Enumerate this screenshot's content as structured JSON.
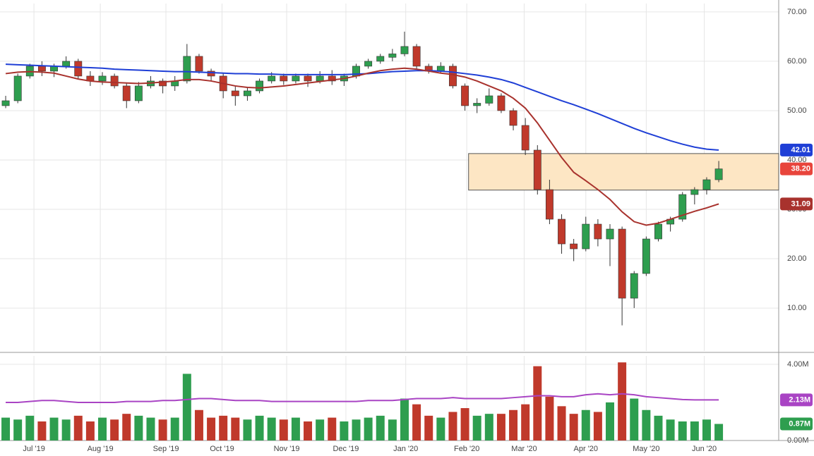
{
  "chart_data": [
    {
      "type": "candlestick",
      "candles": [
        [
          51,
          53,
          50.5,
          52
        ],
        [
          52,
          57.5,
          51.5,
          57
        ],
        [
          57,
          59.5,
          56.5,
          59
        ],
        [
          59,
          60,
          57,
          58
        ],
        [
          58,
          59.5,
          56.8,
          59
        ],
        [
          59,
          61,
          58.5,
          60
        ],
        [
          60,
          60.5,
          56.5,
          57
        ],
        [
          57,
          58,
          55,
          56
        ],
        [
          56,
          57.8,
          55.2,
          57
        ],
        [
          57,
          57.5,
          54.5,
          55
        ],
        [
          55,
          55.5,
          50.5,
          52
        ],
        [
          52,
          55.8,
          51.5,
          55
        ],
        [
          55,
          57,
          54.5,
          56
        ],
        [
          56,
          56.5,
          53.5,
          55
        ],
        [
          55,
          57,
          54,
          56
        ],
        [
          56,
          63.5,
          55.5,
          61
        ],
        [
          61,
          61.5,
          57.5,
          58
        ],
        [
          58,
          58.5,
          56,
          57
        ],
        [
          57,
          57.5,
          52.5,
          54
        ],
        [
          54,
          55,
          51,
          53
        ],
        [
          53,
          54.8,
          52,
          54
        ],
        [
          54,
          56.5,
          53.5,
          56
        ],
        [
          56,
          57.8,
          55.5,
          57
        ],
        [
          57,
          57.5,
          55.2,
          56
        ],
        [
          56,
          57.5,
          55.5,
          57
        ],
        [
          57,
          57.5,
          54.8,
          56
        ],
        [
          56,
          58,
          55.5,
          57
        ],
        [
          57,
          58.2,
          55.2,
          56
        ],
        [
          56,
          57.5,
          55,
          57
        ],
        [
          57,
          59.5,
          56.5,
          59
        ],
        [
          59,
          60.5,
          58.5,
          60
        ],
        [
          60,
          61.5,
          59.5,
          61
        ],
        [
          60.8,
          62.5,
          60,
          61.5
        ],
        [
          61.5,
          66,
          61,
          63
        ],
        [
          63,
          63.5,
          58.5,
          59
        ],
        [
          59,
          59.5,
          57.5,
          58
        ],
        [
          58,
          59.8,
          57.5,
          59
        ],
        [
          59,
          59.5,
          54.5,
          55
        ],
        [
          55,
          55.5,
          50,
          51
        ],
        [
          51,
          52.5,
          49.5,
          51.5
        ],
        [
          51.5,
          54.5,
          51,
          53
        ],
        [
          53,
          53.5,
          49.5,
          50
        ],
        [
          50,
          50.5,
          46,
          47
        ],
        [
          47,
          48.5,
          41,
          42
        ],
        [
          42,
          43,
          33,
          34
        ],
        [
          34,
          36,
          27,
          28
        ],
        [
          28,
          29,
          21,
          23
        ],
        [
          23,
          24,
          19.5,
          22
        ],
        [
          22,
          28.5,
          21.5,
          27
        ],
        [
          27,
          28,
          22.5,
          24
        ],
        [
          24,
          27,
          18.5,
          26
        ],
        [
          26,
          26.5,
          6.5,
          12
        ],
        [
          12,
          17.5,
          10,
          17
        ],
        [
          17,
          24.5,
          16.5,
          24
        ],
        [
          24,
          27.5,
          23.5,
          27
        ],
        [
          27,
          28.5,
          25.5,
          28
        ],
        [
          28,
          33.5,
          27.5,
          33
        ],
        [
          33,
          34.5,
          31,
          34
        ],
        [
          34,
          36.5,
          33,
          36
        ],
        [
          36,
          39.8,
          35.5,
          38.2
        ]
      ],
      "up_color": "#2e9e4f",
      "down_color": "#c0392b",
      "series": [
        {
          "color": "#1f3fd6",
          "values": [
            59.4,
            59.3,
            59.2,
            59.1,
            59.0,
            58.9,
            58.8,
            58.7,
            58.6,
            58.4,
            58.3,
            58.2,
            58.1,
            58.0,
            57.9,
            57.9,
            57.8,
            57.7,
            57.6,
            57.5,
            57.5,
            57.4,
            57.4,
            57.3,
            57.3,
            57.3,
            57.3,
            57.3,
            57.3,
            57.4,
            57.5,
            57.7,
            57.9,
            58.0,
            58.1,
            58.1,
            58.0,
            57.8,
            57.5,
            57.2,
            56.8,
            56.3,
            55.6,
            54.7,
            53.8,
            52.9,
            52.0,
            51.2,
            50.3,
            49.4,
            48.4,
            47.4,
            46.4,
            45.5,
            44.7,
            43.9,
            43.2,
            42.6,
            42.2,
            42.01
          ]
        },
        {
          "color": "#a8322d",
          "values": [
            57.5,
            57.8,
            57.9,
            57.8,
            57.6,
            57.0,
            56.4,
            56.0,
            55.8,
            55.7,
            55.6,
            55.5,
            55.6,
            55.8,
            56.0,
            56.3,
            56.3,
            56.0,
            55.5,
            55.0,
            54.7,
            54.6,
            54.8,
            55.0,
            55.3,
            55.6,
            55.9,
            56.2,
            56.5,
            57.0,
            57.6,
            58.1,
            58.4,
            58.6,
            58.4,
            58.0,
            57.6,
            57.3,
            56.8,
            56.0,
            55.0,
            54.0,
            52.5,
            50.5,
            47.5,
            44.0,
            40.5,
            37.5,
            35.8,
            34.0,
            32.0,
            29.5,
            27.5,
            26.8,
            27.2,
            28.0,
            28.8,
            29.6,
            30.3,
            31.09
          ]
        }
      ],
      "price_label": {
        "value": 38.2,
        "label": "38.20"
      },
      "zone": {
        "from": 38.3,
        "low": 33.9,
        "high": 41.3,
        "color": "#fde6c4"
      },
      "xlim": [
        -0.47,
        63.96
      ],
      "xticks": [
        {
          "value": 2.34,
          "label": "Jul '19"
        },
        {
          "value": 7.83,
          "label": "Aug '19"
        },
        {
          "value": 13.26,
          "label": "Sep '19"
        },
        {
          "value": 17.9,
          "label": "Oct '19"
        },
        {
          "value": 23.25,
          "label": "Nov '19"
        },
        {
          "value": 28.15,
          "label": "Dec '19"
        },
        {
          "value": 33.1,
          "label": "Jan '20"
        },
        {
          "value": 38.15,
          "label": "Feb '20"
        },
        {
          "value": 42.9,
          "label": "Mar '20"
        },
        {
          "value": 48.0,
          "label": "Apr '20"
        },
        {
          "value": 53.0,
          "label": "May '20"
        },
        {
          "value": 57.8,
          "label": "Jun '20"
        }
      ],
      "ylim": [
        1.3,
        71.7
      ],
      "yticks": [
        {
          "value": 10,
          "label": "10.00"
        },
        {
          "value": 20,
          "label": "20.00"
        },
        {
          "value": 30,
          "label": "30.00"
        },
        {
          "value": 40,
          "label": "40.00"
        },
        {
          "value": 50,
          "label": "50.00"
        },
        {
          "value": 60,
          "label": "60.00"
        },
        {
          "value": 70,
          "label": "70.00"
        }
      ],
      "grid": true
    },
    {
      "type": "bar",
      "values": [
        1.2,
        1.1,
        1.3,
        1.0,
        1.2,
        1.1,
        1.3,
        1.0,
        1.2,
        1.1,
        1.4,
        1.3,
        1.2,
        1.1,
        1.2,
        3.5,
        1.6,
        1.2,
        1.3,
        1.2,
        1.1,
        1.3,
        1.2,
        1.1,
        1.2,
        1.0,
        1.1,
        1.2,
        1.0,
        1.1,
        1.2,
        1.3,
        1.1,
        2.2,
        1.9,
        1.3,
        1.2,
        1.5,
        1.7,
        1.3,
        1.4,
        1.4,
        1.6,
        1.9,
        3.9,
        2.3,
        1.8,
        1.4,
        1.6,
        1.5,
        2.0,
        4.1,
        2.2,
        1.6,
        1.3,
        1.1,
        1.0,
        1.0,
        1.1,
        0.87
      ],
      "last_label": {
        "value": 0.87,
        "label": "0.87M"
      },
      "series": [
        {
          "color": "#a944c4",
          "values": [
            2.0,
            2.0,
            2.05,
            2.1,
            2.1,
            2.05,
            2.0,
            2.0,
            2.0,
            2.0,
            2.05,
            2.05,
            2.05,
            2.1,
            2.1,
            2.15,
            2.2,
            2.2,
            2.15,
            2.1,
            2.1,
            2.1,
            2.05,
            2.05,
            2.05,
            2.05,
            2.05,
            2.05,
            2.05,
            2.05,
            2.1,
            2.1,
            2.1,
            2.15,
            2.2,
            2.2,
            2.2,
            2.25,
            2.2,
            2.2,
            2.2,
            2.2,
            2.25,
            2.3,
            2.35,
            2.35,
            2.3,
            2.3,
            2.4,
            2.45,
            2.4,
            2.45,
            2.4,
            2.3,
            2.25,
            2.2,
            2.15,
            2.13,
            2.13,
            2.13
          ],
          "last_label": {
            "value": 2.13,
            "label": "2.13M"
          }
        }
      ],
      "ylim": [
        0,
        4.44
      ],
      "yticks": [
        {
          "value": 0,
          "label": "0.00M"
        },
        {
          "value": 4,
          "label": "4.00M"
        }
      ],
      "grid": true
    }
  ]
}
